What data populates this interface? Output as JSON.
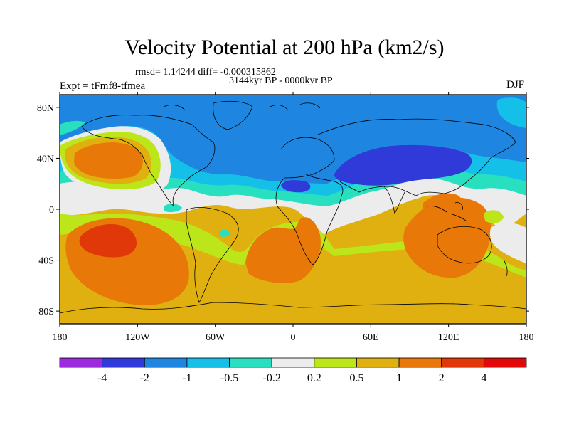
{
  "title": "Velocity Potential at 200 hPa (km2/s)",
  "stats": "rmsd= 1.14244 diff= -0.000315862",
  "period": "3144kyr BP - 0000kyr BP",
  "experiment": "Expt = tFmf8-tfmea",
  "season": "DJF",
  "map": {
    "lon_range": [
      -180,
      180
    ],
    "lat_range": [
      -90,
      90
    ],
    "lon_ticks": [
      {
        "value": -180,
        "label": "180"
      },
      {
        "value": -120,
        "label": "120W"
      },
      {
        "value": -60,
        "label": "60W"
      },
      {
        "value": 0,
        "label": "0"
      },
      {
        "value": 60,
        "label": "60E"
      },
      {
        "value": 120,
        "label": "120E"
      },
      {
        "value": 180,
        "label": "180"
      }
    ],
    "lat_ticks": [
      {
        "value": 80,
        "label": "80N"
      },
      {
        "value": 40,
        "label": "40N"
      },
      {
        "value": 0,
        "label": "0"
      },
      {
        "value": -40,
        "label": "40S"
      },
      {
        "value": -80,
        "label": "80S"
      }
    ]
  },
  "colorbar": {
    "colors": [
      "#9b2bdc",
      "#2f3ad8",
      "#1e86e0",
      "#14c0e8",
      "#28e0c0",
      "#ececec",
      "#bce61a",
      "#e0b010",
      "#e87808",
      "#e03808",
      "#e00808"
    ],
    "labels": [
      "-4",
      "-2",
      "-1",
      "-0.5",
      "-0.2",
      "0.2",
      "0.5",
      "1",
      "2",
      "4"
    ]
  }
}
